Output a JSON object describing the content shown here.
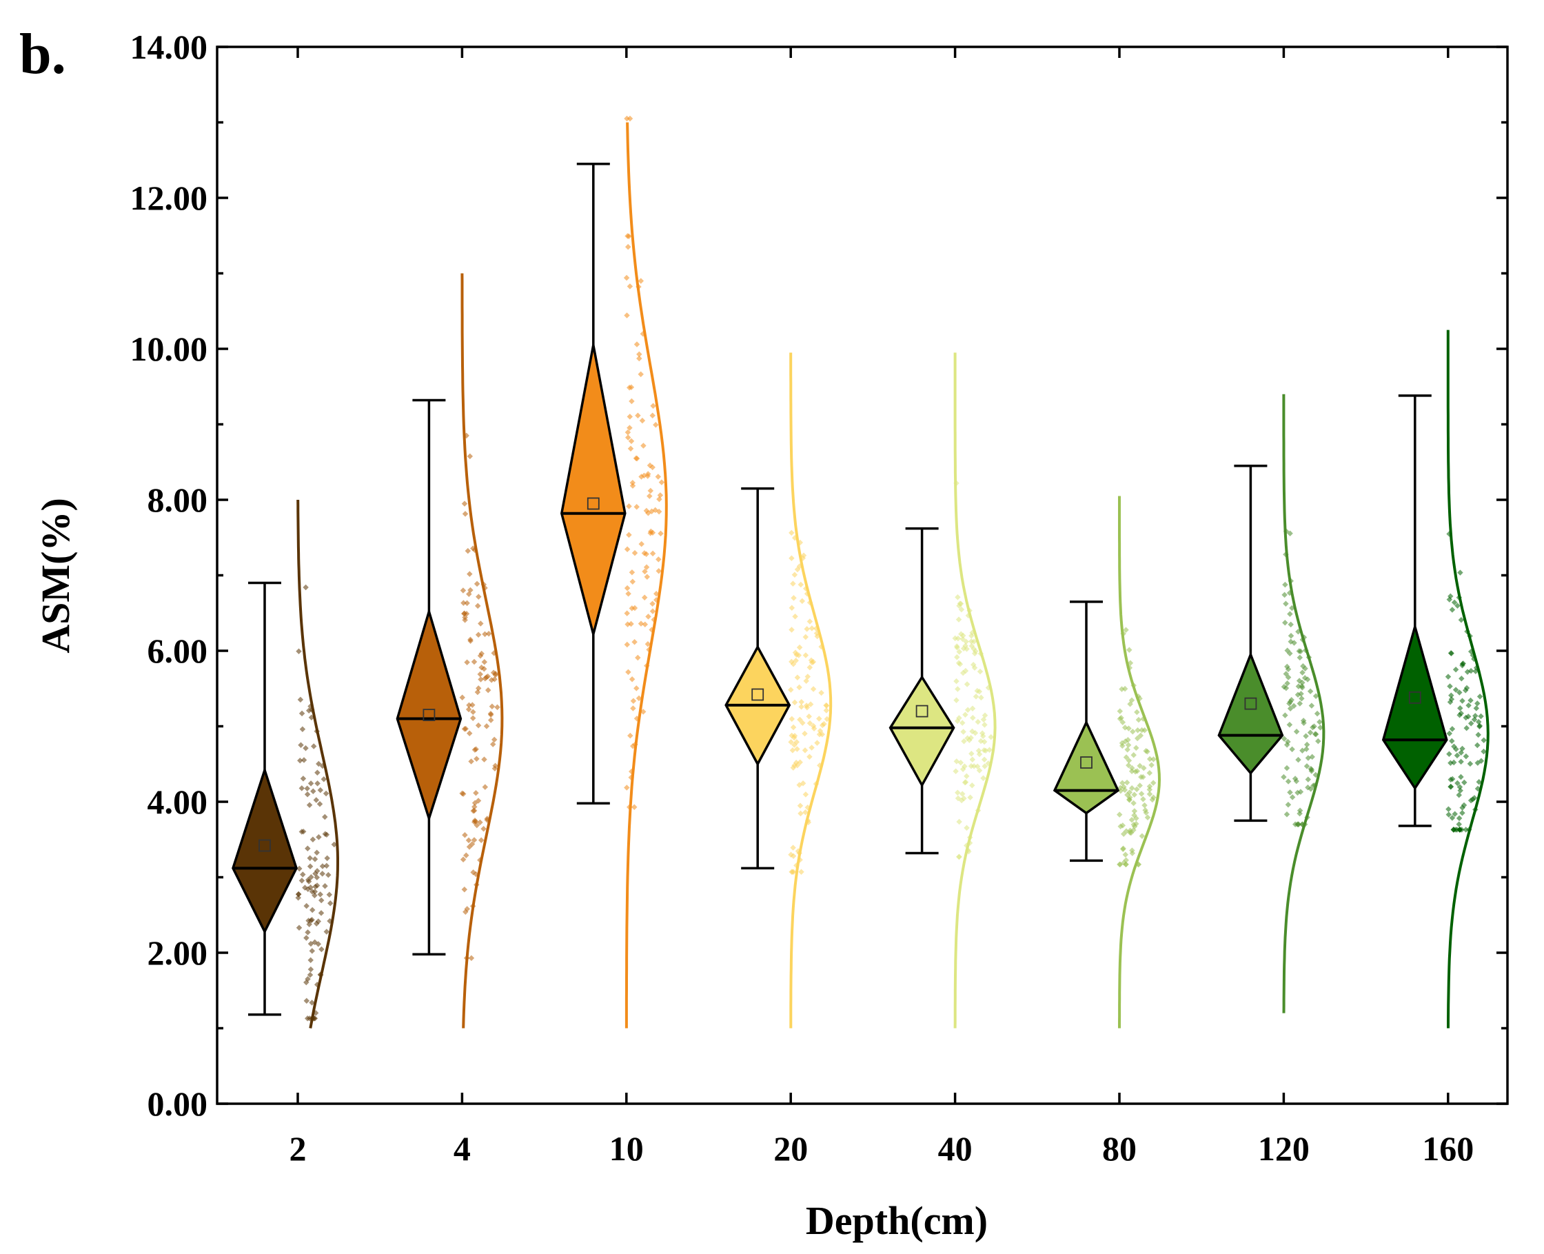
{
  "chart_data": {
    "type": "box",
    "panel_label": "b.",
    "xlabel": "Depth(cm)",
    "ylabel": "ASM(%)",
    "ylim": [
      0,
      14
    ],
    "yticks": [
      "0.00",
      "2.00",
      "4.00",
      "6.00",
      "8.00",
      "10.00",
      "12.00",
      "14.00"
    ],
    "ytick_values": [
      0,
      2,
      4,
      6,
      8,
      10,
      12,
      14
    ],
    "categories": [
      "2",
      "4",
      "10",
      "20",
      "40",
      "80",
      "120",
      "160"
    ],
    "series": [
      {
        "name": "2",
        "color": "#5a3406",
        "min": 1.18,
        "max": 6.9,
        "diamond_low": 2.28,
        "diamond_high": 4.42,
        "median": 3.12,
        "mean": 3.42,
        "density_mean": 3.2,
        "density_sd": 1.45,
        "density_range": [
          1.0,
          8.0
        ]
      },
      {
        "name": "4",
        "color": "#b8600a",
        "min": 1.98,
        "max": 9.32,
        "diamond_low": 3.78,
        "diamond_high": 6.52,
        "median": 5.1,
        "mean": 5.15,
        "density_mean": 5.1,
        "density_sd": 1.55,
        "density_range": [
          1.0,
          11.0
        ]
      },
      {
        "name": "10",
        "color": "#f28c1a",
        "min": 3.98,
        "max": 12.45,
        "diamond_low": 6.22,
        "diamond_high": 10.05,
        "median": 7.82,
        "mean": 7.95,
        "density_mean": 7.9,
        "density_sd": 1.85,
        "density_range": [
          1.0,
          13.0
        ]
      },
      {
        "name": "20",
        "color": "#fcd45e",
        "min": 3.12,
        "max": 8.15,
        "diamond_low": 4.5,
        "diamond_high": 6.05,
        "median": 5.28,
        "mean": 5.42,
        "density_mean": 5.3,
        "density_sd": 1.15,
        "density_range": [
          1.0,
          9.95
        ]
      },
      {
        "name": "40",
        "color": "#dde682",
        "min": 3.32,
        "max": 7.62,
        "diamond_low": 4.22,
        "diamond_high": 5.65,
        "median": 4.98,
        "mean": 5.2,
        "density_mean": 5.0,
        "density_sd": 1.05,
        "density_range": [
          1.0,
          9.95
        ]
      },
      {
        "name": "80",
        "color": "#9bc153",
        "min": 3.22,
        "max": 6.65,
        "diamond_low": 3.85,
        "diamond_high": 5.05,
        "median": 4.15,
        "mean": 4.52,
        "density_mean": 4.3,
        "density_sd": 0.85,
        "density_range": [
          1.0,
          8.05
        ]
      },
      {
        "name": "120",
        "color": "#4a8d2b",
        "min": 3.75,
        "max": 8.45,
        "diamond_low": 4.38,
        "diamond_high": 5.95,
        "median": 4.88,
        "mean": 5.3,
        "density_mean": 4.9,
        "density_sd": 1.05,
        "density_range": [
          1.2,
          9.4
        ]
      },
      {
        "name": "160",
        "color": "#006100",
        "min": 3.68,
        "max": 9.38,
        "diamond_low": 4.18,
        "diamond_high": 6.32,
        "median": 4.82,
        "mean": 5.38,
        "density_mean": 4.9,
        "density_sd": 1.15,
        "density_range": [
          1.0,
          10.25
        ]
      }
    ]
  }
}
